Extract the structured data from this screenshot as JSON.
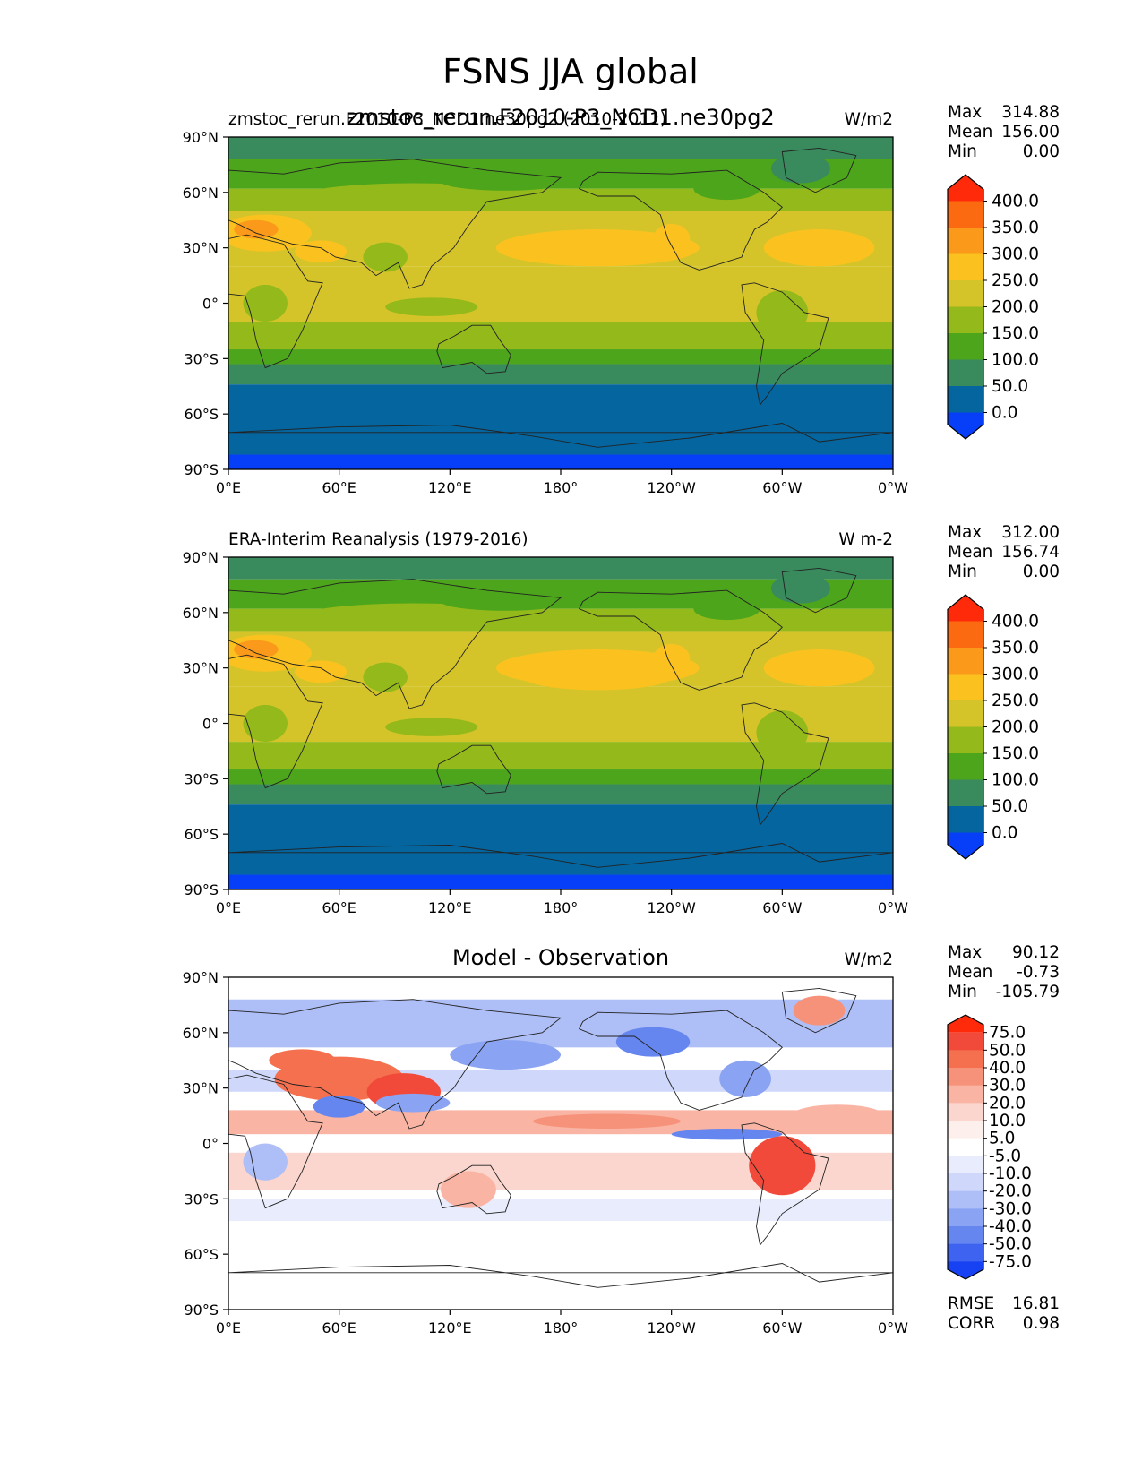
{
  "figure_title": "FSNS JJA global",
  "panels": [
    {
      "left_title": "zmstoc_rerun.F2010-P3_NCD1.ne30pg2 (2010-2011)",
      "center_title": "zmstoc_rerun.F2010-P3_NCD1.ne30pg2",
      "units": "W/m2",
      "stats": [
        {
          "label": "Max",
          "value": "314.88"
        },
        {
          "label": "Mean",
          "value": "156.00"
        },
        {
          "label": "Min",
          "value": "0.00"
        }
      ],
      "colorbar": {
        "labels": [
          "400.0",
          "350.0",
          "300.0",
          "250.0",
          "200.0",
          "150.0",
          "100.0",
          "50.0",
          "0.0"
        ],
        "colors": [
          "#ff2a0a",
          "#fb6a10",
          "#fb9a1a",
          "#fbc21f",
          "#d4c42a",
          "#94b91a",
          "#4ca51b",
          "#398a5c",
          "#05659e",
          "#063ff7"
        ]
      }
    },
    {
      "left_title": "ERA-Interim Reanalysis (1979-2016)",
      "center_title": "",
      "units": "W m-2",
      "stats": [
        {
          "label": "Max",
          "value": "312.00"
        },
        {
          "label": "Mean",
          "value": "156.74"
        },
        {
          "label": "Min",
          "value": "0.00"
        }
      ],
      "colorbar": {
        "labels": [
          "400.0",
          "350.0",
          "300.0",
          "250.0",
          "200.0",
          "150.0",
          "100.0",
          "50.0",
          "0.0"
        ],
        "colors": [
          "#ff2a0a",
          "#fb6a10",
          "#fb9a1a",
          "#fbc21f",
          "#d4c42a",
          "#94b91a",
          "#4ca51b",
          "#398a5c",
          "#05659e",
          "#063ff7"
        ]
      }
    },
    {
      "left_title": "",
      "center_title": "Model - Observation",
      "units": "W/m2",
      "stats": [
        {
          "label": "Max",
          "value": "90.12"
        },
        {
          "label": "Mean",
          "value": "-0.73"
        },
        {
          "label": "Min",
          "value": "-105.79"
        }
      ],
      "colorbar": {
        "labels": [
          "75.0",
          "50.0",
          "40.0",
          "30.0",
          "20.0",
          "10.0",
          "5.0",
          "-5.0",
          "-10.0",
          "-20.0",
          "-30.0",
          "-40.0",
          "-50.0",
          "-75.0"
        ],
        "colors": [
          "#ff2a0a",
          "#f24a3a",
          "#f4704f",
          "#f7927a",
          "#f9b4a4",
          "#fbd6ce",
          "#fdf0ec",
          "#ffffff",
          "#e8ecfc",
          "#cfd8fa",
          "#aebef6",
          "#8aa3f2",
          "#6686ef",
          "#3e63f1",
          "#1642f4"
        ]
      },
      "metrics": [
        {
          "label": "RMSE",
          "value": "16.81"
        },
        {
          "label": "CORR",
          "value": "0.98"
        }
      ]
    }
  ],
  "axes": {
    "lat_ticks": [
      "90°N",
      "60°N",
      "30°N",
      "0°",
      "30°S",
      "60°S",
      "90°S"
    ],
    "lon_ticks": [
      "0°E",
      "60°E",
      "120°E",
      "180°",
      "120°W",
      "60°W",
      "0°W"
    ],
    "lat_values": [
      90,
      60,
      30,
      0,
      -30,
      -60,
      -90
    ],
    "lon_values": [
      0,
      60,
      120,
      180,
      240,
      300,
      360
    ]
  },
  "chart_data": [
    {
      "type": "heatmap",
      "title": "zmstoc_rerun.F2010-P3_NCD1.ne30pg2 (2010-2011)",
      "variable": "FSNS",
      "units": "W/m2",
      "xlim": [
        0,
        360
      ],
      "ylim": [
        -90,
        90
      ],
      "levels": [
        0,
        50,
        100,
        150,
        200,
        250,
        300,
        350,
        400
      ],
      "max": 314.88,
      "mean": 156.0,
      "min": 0.0
    },
    {
      "type": "heatmap",
      "title": "ERA-Interim Reanalysis (1979-2016)",
      "variable": "FSNS",
      "units": "W m-2",
      "xlim": [
        0,
        360
      ],
      "ylim": [
        -90,
        90
      ],
      "levels": [
        0,
        50,
        100,
        150,
        200,
        250,
        300,
        350,
        400
      ],
      "max": 312.0,
      "mean": 156.74,
      "min": 0.0
    },
    {
      "type": "heatmap",
      "title": "Model - Observation",
      "units": "W/m2",
      "xlim": [
        0,
        360
      ],
      "ylim": [
        -90,
        90
      ],
      "levels": [
        -75,
        -50,
        -40,
        -30,
        -20,
        -10,
        -5,
        5,
        10,
        20,
        30,
        40,
        50,
        75
      ],
      "max": 90.12,
      "mean": -0.73,
      "min": -105.79,
      "rmse": 16.81,
      "corr": 0.98
    }
  ]
}
